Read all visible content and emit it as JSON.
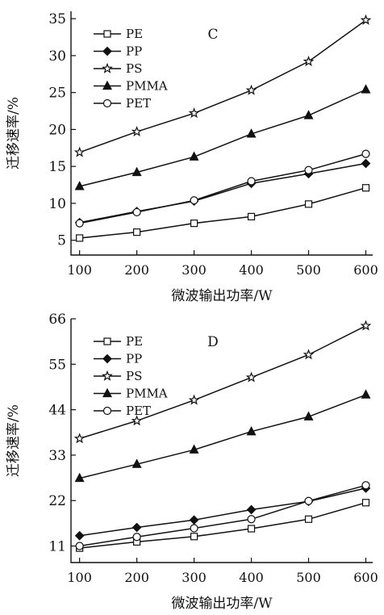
{
  "chart_data": [
    {
      "type": "line",
      "panel_label": "C",
      "xlabel": "微波输出功率/W",
      "ylabel": "迁移速率/%",
      "x": [
        100,
        200,
        300,
        400,
        500,
        600
      ],
      "xticks": [
        "100",
        "200",
        "300",
        "400",
        "500",
        "600"
      ],
      "ylim": [
        3,
        36
      ],
      "yticks": [
        "5",
        "10",
        "15",
        "20",
        "25",
        "30",
        "35"
      ],
      "ytick_values": [
        5,
        10,
        15,
        20,
        25,
        30,
        35
      ],
      "legend_position": "top-left",
      "series": [
        {
          "name": "PE",
          "marker": "square",
          "values": [
            5.3,
            6.1,
            7.3,
            8.2,
            9.9,
            12.1
          ]
        },
        {
          "name": "PP",
          "marker": "diamond",
          "values": [
            7.4,
            8.9,
            10.3,
            12.7,
            14.0,
            15.4
          ]
        },
        {
          "name": "PS",
          "marker": "star",
          "values": [
            16.9,
            19.7,
            22.2,
            25.3,
            29.2,
            34.8
          ]
        },
        {
          "name": "PMMA",
          "marker": "triangle",
          "values": [
            12.3,
            14.2,
            16.3,
            19.4,
            21.9,
            25.4
          ]
        },
        {
          "name": "PET",
          "marker": "circle",
          "values": [
            7.3,
            8.8,
            10.4,
            13.0,
            14.5,
            16.7
          ]
        }
      ]
    },
    {
      "type": "line",
      "panel_label": "D",
      "xlabel": "微波输出功率/W",
      "ylabel": "迁移速率/%",
      "x": [
        100,
        200,
        300,
        400,
        500,
        600
      ],
      "xticks": [
        "100",
        "200",
        "300",
        "400",
        "500",
        "600"
      ],
      "ylim": [
        7,
        66
      ],
      "yticks": [
        "11",
        "22",
        "33",
        "44",
        "55",
        "66"
      ],
      "ytick_values": [
        11,
        22,
        33,
        44,
        55,
        66
      ],
      "legend_position": "top-left",
      "series": [
        {
          "name": "PE",
          "marker": "square",
          "values": [
            10.5,
            12.0,
            13.3,
            15.2,
            17.5,
            21.5
          ]
        },
        {
          "name": "PP",
          "marker": "diamond",
          "values": [
            13.5,
            15.5,
            17.3,
            19.8,
            21.8,
            25.0
          ]
        },
        {
          "name": "PS",
          "marker": "star",
          "values": [
            37.0,
            41.3,
            46.3,
            51.8,
            57.3,
            64.3
          ]
        },
        {
          "name": "PMMA",
          "marker": "triangle",
          "values": [
            27.4,
            30.8,
            34.3,
            38.7,
            42.3,
            47.6
          ]
        },
        {
          "name": "PET",
          "marker": "circle",
          "values": [
            11.0,
            13.2,
            15.3,
            17.5,
            21.9,
            25.7
          ]
        }
      ]
    }
  ]
}
